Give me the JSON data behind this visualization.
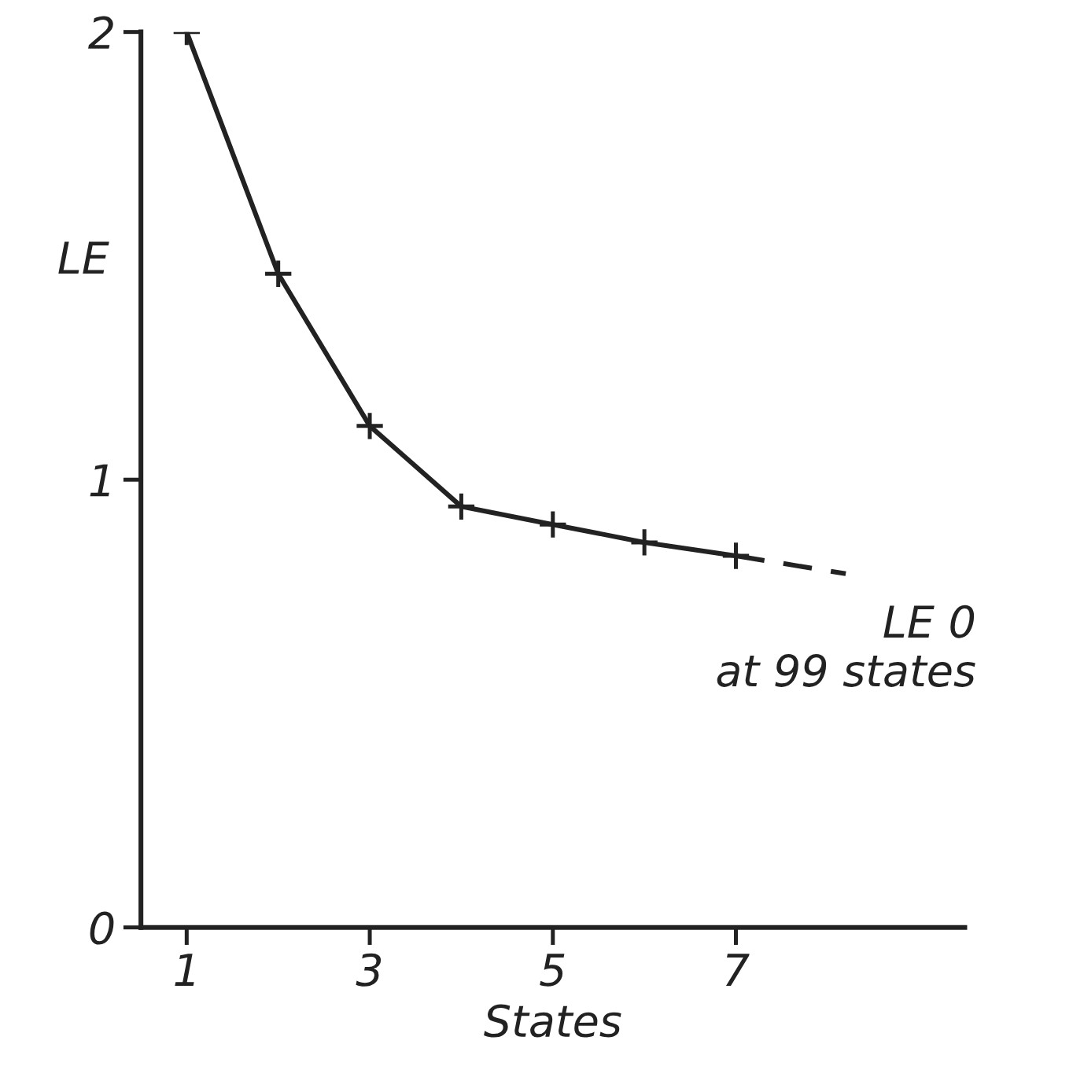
{
  "chart_data": {
    "type": "line",
    "xlabel": "States",
    "ylabel": "LE",
    "series": [
      {
        "color": "#222222",
        "x": [
          1,
          2,
          3,
          4,
          5,
          6,
          7
        ],
        "values": [
          2.0,
          1.46,
          1.12,
          0.94,
          0.9,
          0.86,
          0.83
        ],
        "marker": "cross",
        "line_style": "solid"
      },
      {
        "color": "#222222",
        "x": [
          7,
          8.2
        ],
        "values": [
          0.83,
          0.79
        ],
        "marker": "none",
        "line_style": "dashed"
      }
    ],
    "xlim": [
      0.5,
      9.5
    ],
    "ylim": [
      0,
      2
    ],
    "xticks": [
      1,
      3,
      5,
      7
    ],
    "yticks": [
      0,
      1,
      2
    ],
    "grid": false,
    "legend": false,
    "annotations": [
      {
        "text": "LE 0\nat 99 states",
        "x": 8.2,
        "y": 0.79
      }
    ]
  }
}
